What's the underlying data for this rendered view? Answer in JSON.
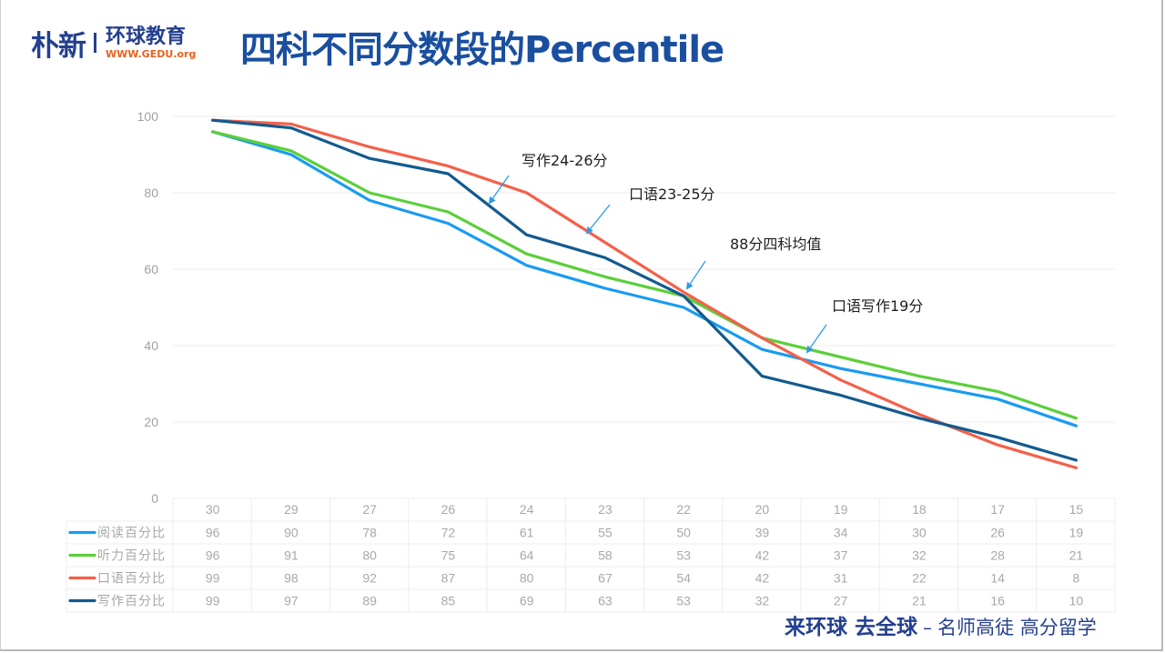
{
  "logo": {
    "brand": "朴新",
    "org_cn": "环球教育",
    "url_text": "WWW.GEDU.org"
  },
  "page_title": "四科不同分数段的Percentile",
  "slogan": {
    "bold": "来环球 去全球",
    "dash": "–",
    "light": "名师高徒 高分留学"
  },
  "colors": {
    "title": "#1a4fa0",
    "logo": "#243f8f",
    "logo_url": "#e8611f",
    "reading": "#1a9bf0",
    "listening": "#5ccf3a",
    "speaking": "#f4604a",
    "writing": "#135a8e",
    "arrow": "#2f9be8"
  },
  "chart_data": {
    "type": "line",
    "title": "四科不同分数段的Percentile",
    "xlabel": "",
    "ylabel": "",
    "ylim": [
      0,
      100
    ],
    "yticks": [
      "0",
      "20",
      "40",
      "60",
      "80",
      "100"
    ],
    "grid": true,
    "legend": "data-table-left",
    "categories": [
      "30",
      "29",
      "27",
      "26",
      "24",
      "23",
      "22",
      "20",
      "19",
      "18",
      "17",
      "15"
    ],
    "series": [
      {
        "name": "阅读百分比",
        "color": "#1a9bf0",
        "values": [
          96,
          90,
          78,
          72,
          61,
          55,
          50,
          39,
          34,
          30,
          26,
          19
        ]
      },
      {
        "name": "听力百分比",
        "color": "#5ccf3a",
        "values": [
          96,
          91,
          80,
          75,
          64,
          58,
          53,
          42,
          37,
          32,
          28,
          21
        ]
      },
      {
        "name": "口语百分比",
        "color": "#f4604a",
        "values": [
          99,
          98,
          92,
          87,
          80,
          67,
          54,
          42,
          31,
          22,
          14,
          8
        ]
      },
      {
        "name": "写作百分比",
        "color": "#135a8e",
        "values": [
          99,
          97,
          89,
          85,
          69,
          63,
          53,
          32,
          27,
          21,
          16,
          10
        ]
      }
    ],
    "annotations": [
      {
        "text": "写作24-26分",
        "target_series": "写作百分比",
        "target_category": "24-26"
      },
      {
        "text": "口语23-25分",
        "target_series": "口语百分比",
        "target_category": "23-24"
      },
      {
        "text": "88分四科均值",
        "target_series": "all",
        "target_category": "22"
      },
      {
        "text": "口语写作19分",
        "target_series": "听力百分比",
        "target_category": "19"
      }
    ]
  }
}
